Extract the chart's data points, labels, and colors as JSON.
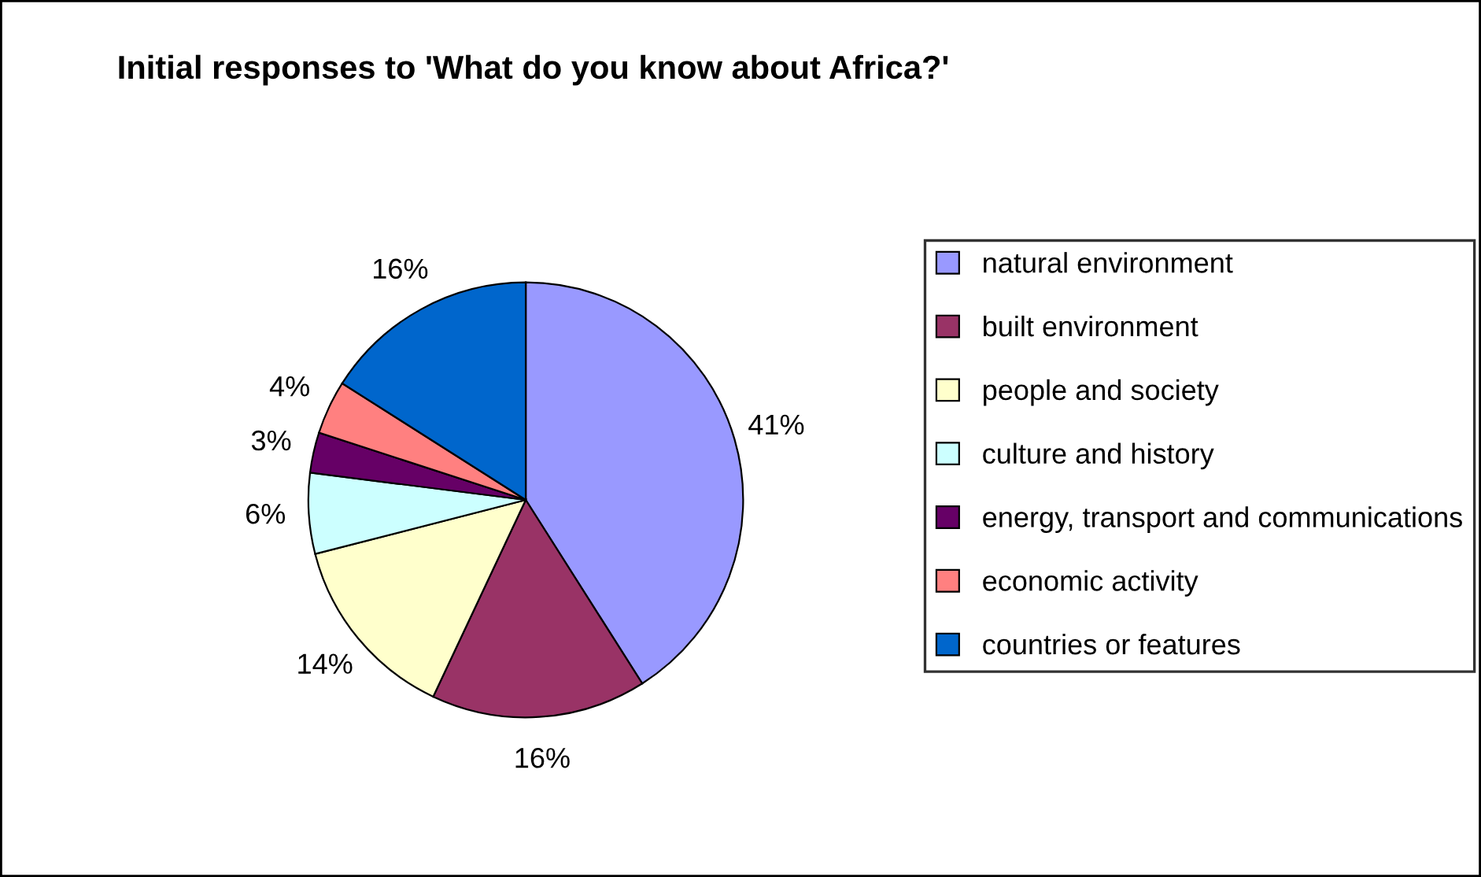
{
  "chart_data": {
    "type": "pie",
    "title": "Initial responses to 'What do you know about Africa?'",
    "categories": [
      "natural environment",
      "built environment",
      "people and society",
      "culture and history",
      "energy, transport and communications",
      "economic activity",
      "countries or features"
    ],
    "values": [
      41,
      16,
      14,
      6,
      3,
      4,
      16
    ],
    "value_labels": [
      "41%",
      "16%",
      "14%",
      "6%",
      "3%",
      "4%",
      "16%"
    ],
    "colors": [
      "#9999ff",
      "#993366",
      "#ffffcc",
      "#ccffff",
      "#660066",
      "#ff8080",
      "#0066cc"
    ],
    "legend": "right"
  }
}
